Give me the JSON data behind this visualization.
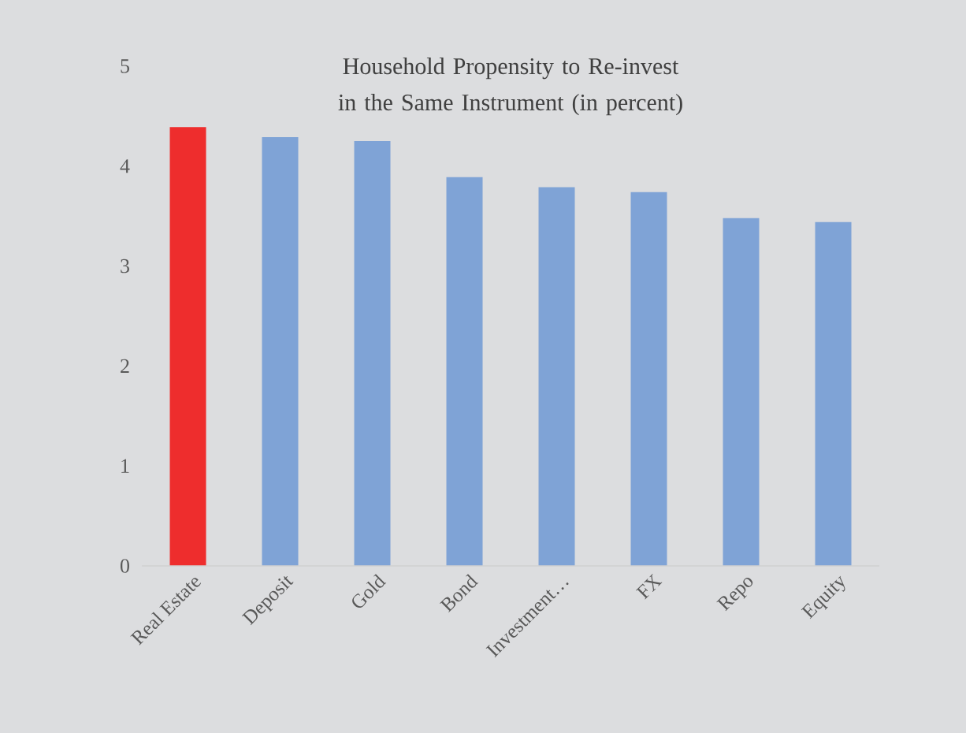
{
  "chart_data": {
    "type": "bar",
    "title": "Household Propensity to Re-invest in the Same Instrument (in percent)",
    "categories": [
      "Real Estate",
      "Deposit",
      "Gold",
      "Bond",
      "Investment…",
      "FX",
      "Repo",
      "Equity"
    ],
    "values": [
      4.39,
      4.29,
      4.25,
      3.89,
      3.79,
      3.74,
      3.48,
      3.44
    ],
    "colors": [
      "#ee2d2d",
      "#7fa3d6",
      "#7fa3d6",
      "#7fa3d6",
      "#7fa3d6",
      "#7fa3d6",
      "#7fa3d6",
      "#7fa3d6"
    ],
    "ylim": [
      0,
      5
    ],
    "yticks": [
      0,
      1,
      2,
      3,
      4,
      5
    ],
    "grid": false
  }
}
